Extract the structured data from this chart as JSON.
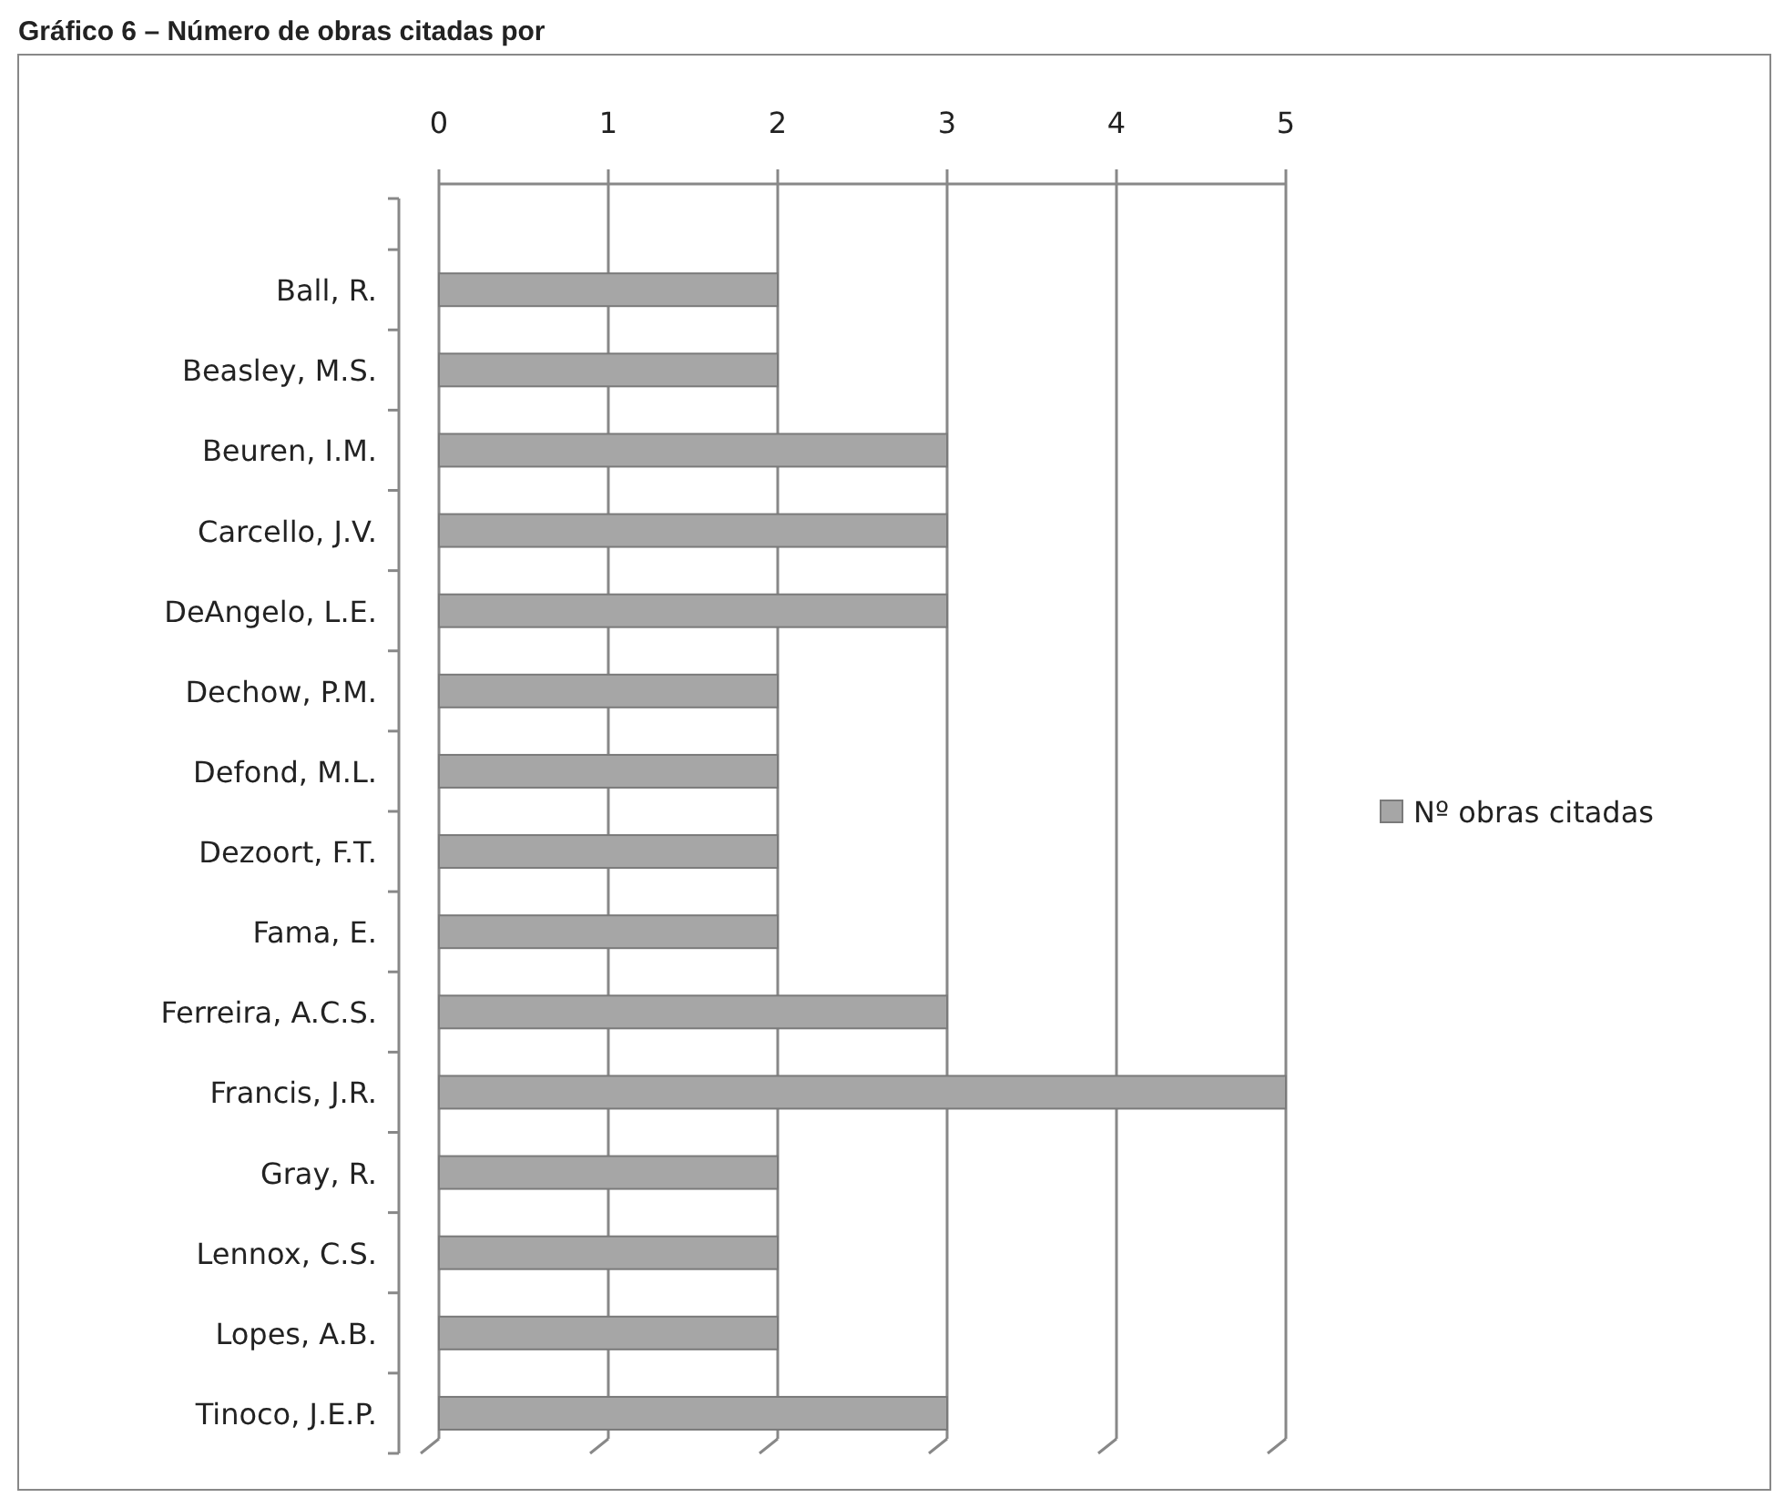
{
  "chart_data": {
    "type": "bar",
    "orientation": "horizontal",
    "title": "Gráfico 6 – Número de obras citadas por",
    "categories": [
      null,
      "Ball, R.",
      "Beasley, M.S.",
      "Beuren, I.M.",
      "Carcello, J.V.",
      "DeAngelo, L.E.",
      "Dechow, P.M.",
      "Defond, M.L.",
      "Dezoort, F.T.",
      "Fama, E.",
      "Ferreira, A.C.S.",
      "Francis, J.R.",
      "Gray, R.",
      "Lennox, C.S.",
      "Lopes, A.B.",
      "Tinoco, J.E.P."
    ],
    "series": [
      {
        "name": "Nº obras citadas",
        "color": "#a6a6a6",
        "values": [
          null,
          2,
          2,
          3,
          3,
          3,
          2,
          2,
          2,
          2,
          3,
          5,
          2,
          2,
          2,
          3
        ]
      }
    ],
    "xlim": [
      0,
      5
    ],
    "xticks": [
      0,
      1,
      2,
      3,
      4,
      5
    ],
    "grid": "x",
    "legend": "right"
  }
}
